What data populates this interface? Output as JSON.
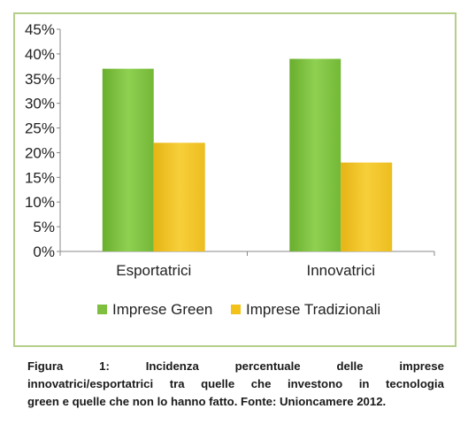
{
  "chart_data": {
    "type": "bar",
    "title": "",
    "xlabel": "",
    "ylabel": "",
    "categories": [
      "Esportatrici",
      "Innovatrici"
    ],
    "series": [
      {
        "name": "Imprese Green",
        "values": [
          37,
          39
        ],
        "color": "#7fbf3f"
      },
      {
        "name": "Imprese Tradizionali",
        "values": [
          22,
          18
        ],
        "color": "#f2c21b"
      }
    ],
    "ylim": [
      0,
      45
    ],
    "yticks": [
      "0%",
      "5%",
      "10%",
      "15%",
      "20%",
      "25%",
      "30%",
      "35%",
      "40%",
      "45%"
    ],
    "grid": false,
    "legend_position": "bottom"
  },
  "caption": {
    "words_line1": [
      "Figura",
      "1:",
      "Incidenza",
      "percentuale",
      "delle",
      "imprese"
    ],
    "words_line2": [
      "innovatrici/esportatrici",
      "tra",
      "quelle",
      "che",
      "investono",
      "in",
      "tecnologia"
    ],
    "line3": "green e quelle che non lo hanno fatto. Fonte: Unioncamere 2012."
  },
  "colors": {
    "frame_border": "#b5cf8a",
    "axis": "#888888"
  }
}
